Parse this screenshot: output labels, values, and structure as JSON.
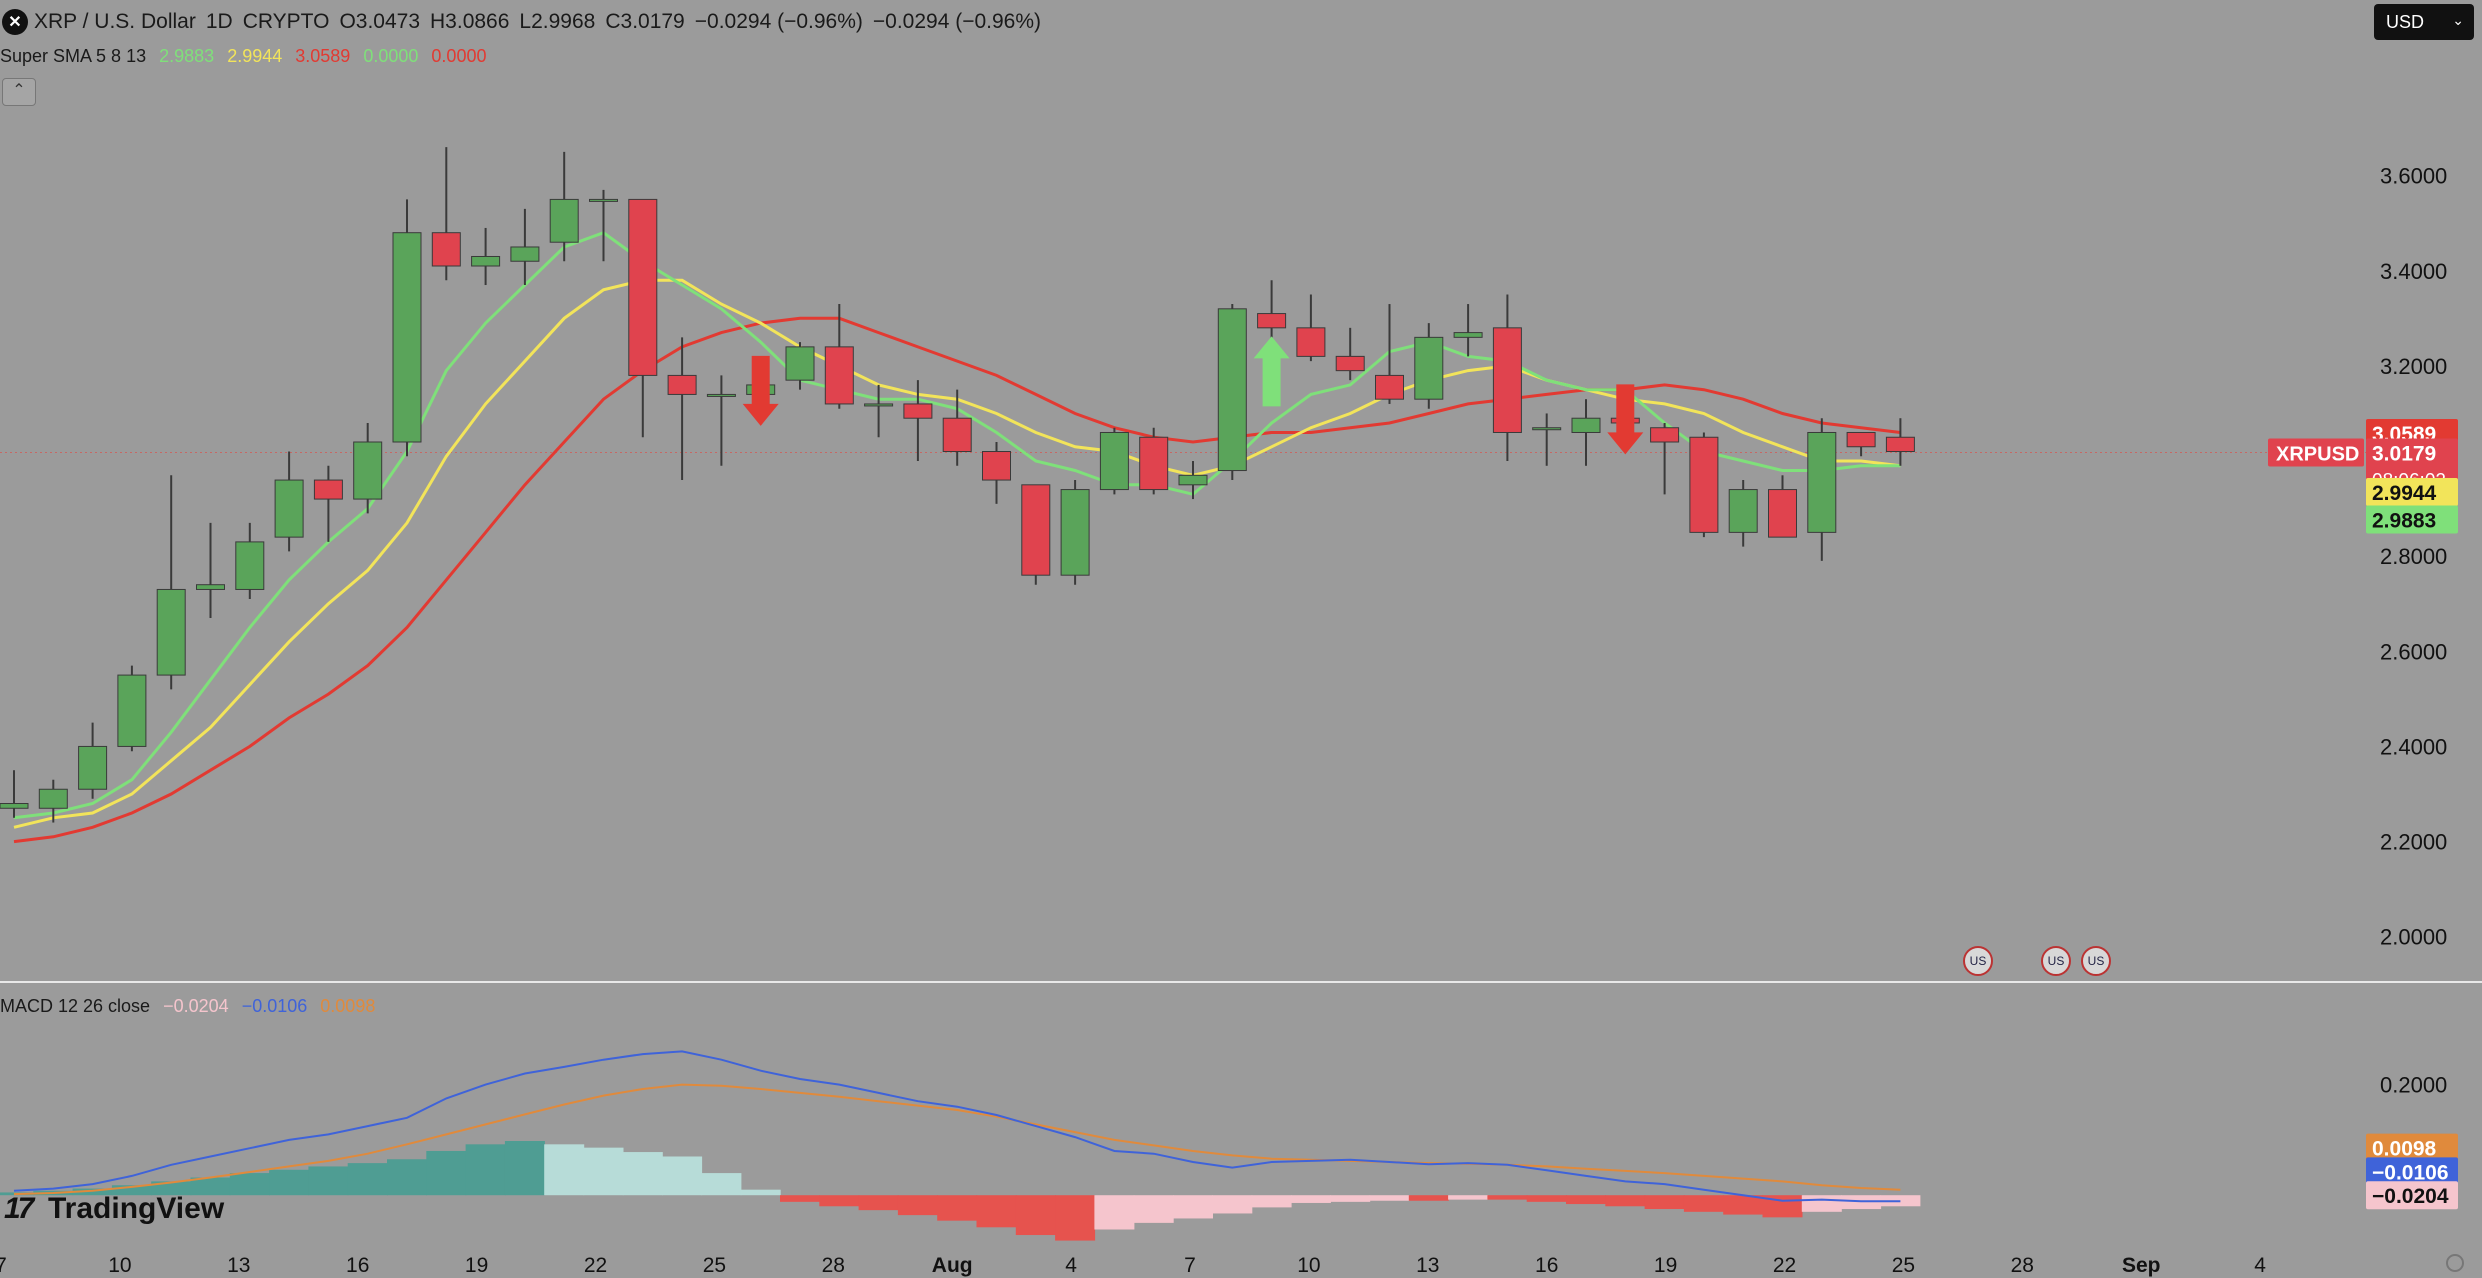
{
  "header": {
    "symbol": "XRP / U.S. Dollar",
    "interval": "1D",
    "exchange": "CRYPTO",
    "open": "O3.0473",
    "high": "H3.0866",
    "low": "L2.9968",
    "close": "C3.0179",
    "change": "−0.0294 (−0.96%)",
    "change2": "−0.0294 (−0.96%)",
    "currency": "USD"
  },
  "sma": {
    "title": "Super SMA 5 8 13",
    "v1": "2.9883",
    "v2": "2.9944",
    "v3": "3.0589",
    "v4": "0.0000",
    "v5": "0.0000"
  },
  "macd": {
    "title": "MACD 12 26 close",
    "hist": "−0.0204",
    "macd": "−0.0106",
    "signal": "0.0098"
  },
  "watermark": "TradingView",
  "colors": {
    "up": "#5aa45a",
    "down": "#e0434e",
    "sma5": "#7fe07a",
    "sma8": "#f2e45a",
    "sma13": "#e23a32",
    "macd": "#3f63d9",
    "signal": "#e08a3c",
    "bg": "#9b9b9b",
    "hist_up_strong": "#4f9d93",
    "hist_up_weak": "#b7dcd8",
    "hist_down_strong": "#e6534e",
    "hist_down_weak": "#f5c5cd"
  },
  "chart_data": [
    {
      "type": "candlestick",
      "title": "XRP / U.S. Dollar",
      "xlabel": "",
      "ylabel": "",
      "x_ticks": [
        "7",
        "10",
        "13",
        "16",
        "19",
        "22",
        "25",
        "28",
        "Aug",
        "4",
        "7",
        "10",
        "13",
        "16",
        "19",
        "22",
        "25",
        "28",
        "Sep",
        "4"
      ],
      "y_ticks": [
        "2.0000",
        "2.2000",
        "2.4000",
        "2.6000",
        "2.8000",
        "3.0000",
        "3.2000",
        "3.4000",
        "3.6000"
      ],
      "ylim": [
        1.93,
        3.78
      ],
      "price_labels": {
        "sma13": "3.0589",
        "last": "3.0179",
        "countdown": "08:06:02",
        "sma8": "2.9944",
        "sma5": "2.9883",
        "symbol": "XRPUSD"
      },
      "candles": [
        {
          "o": 2.27,
          "h": 2.35,
          "l": 2.25,
          "c": 2.28
        },
        {
          "o": 2.27,
          "h": 2.33,
          "l": 2.24,
          "c": 2.31
        },
        {
          "o": 2.31,
          "h": 2.45,
          "l": 2.29,
          "c": 2.4
        },
        {
          "o": 2.4,
          "h": 2.57,
          "l": 2.39,
          "c": 2.55
        },
        {
          "o": 2.55,
          "h": 2.97,
          "l": 2.52,
          "c": 2.73
        },
        {
          "o": 2.73,
          "h": 2.87,
          "l": 2.67,
          "c": 2.74
        },
        {
          "o": 2.73,
          "h": 2.87,
          "l": 2.71,
          "c": 2.83
        },
        {
          "o": 2.84,
          "h": 3.02,
          "l": 2.81,
          "c": 2.96
        },
        {
          "o": 2.96,
          "h": 2.99,
          "l": 2.83,
          "c": 2.92
        },
        {
          "o": 2.92,
          "h": 3.08,
          "l": 2.89,
          "c": 3.04
        },
        {
          "o": 3.04,
          "h": 3.55,
          "l": 3.01,
          "c": 3.48
        },
        {
          "o": 3.48,
          "h": 3.66,
          "l": 3.38,
          "c": 3.41
        },
        {
          "o": 3.41,
          "h": 3.49,
          "l": 3.37,
          "c": 3.43
        },
        {
          "o": 3.42,
          "h": 3.53,
          "l": 3.37,
          "c": 3.45
        },
        {
          "o": 3.46,
          "h": 3.65,
          "l": 3.42,
          "c": 3.55
        },
        {
          "o": 3.55,
          "h": 3.57,
          "l": 3.42,
          "c": 3.55
        },
        {
          "o": 3.55,
          "h": 3.55,
          "l": 3.05,
          "c": 3.18
        },
        {
          "o": 3.18,
          "h": 3.26,
          "l": 2.96,
          "c": 3.14
        },
        {
          "o": 3.14,
          "h": 3.18,
          "l": 2.99,
          "c": 3.14
        },
        {
          "o": 3.14,
          "h": 3.2,
          "l": 3.11,
          "c": 3.16
        },
        {
          "o": 3.17,
          "h": 3.25,
          "l": 3.15,
          "c": 3.24
        },
        {
          "o": 3.24,
          "h": 3.33,
          "l": 3.11,
          "c": 3.12
        },
        {
          "o": 3.12,
          "h": 3.16,
          "l": 3.05,
          "c": 3.12
        },
        {
          "o": 3.12,
          "h": 3.17,
          "l": 3.0,
          "c": 3.09
        },
        {
          "o": 3.09,
          "h": 3.15,
          "l": 2.99,
          "c": 3.02
        },
        {
          "o": 3.02,
          "h": 3.04,
          "l": 2.91,
          "c": 2.96
        },
        {
          "o": 2.95,
          "h": 2.95,
          "l": 2.74,
          "c": 2.76
        },
        {
          "o": 2.76,
          "h": 2.96,
          "l": 2.74,
          "c": 2.94
        },
        {
          "o": 2.94,
          "h": 3.07,
          "l": 2.93,
          "c": 3.06
        },
        {
          "o": 3.05,
          "h": 3.07,
          "l": 2.93,
          "c": 2.94
        },
        {
          "o": 2.95,
          "h": 3.0,
          "l": 2.92,
          "c": 2.97
        },
        {
          "o": 2.98,
          "h": 3.33,
          "l": 2.96,
          "c": 3.32
        },
        {
          "o": 3.31,
          "h": 3.38,
          "l": 3.22,
          "c": 3.28
        },
        {
          "o": 3.28,
          "h": 3.35,
          "l": 3.21,
          "c": 3.22
        },
        {
          "o": 3.22,
          "h": 3.28,
          "l": 3.17,
          "c": 3.19
        },
        {
          "o": 3.18,
          "h": 3.33,
          "l": 3.12,
          "c": 3.13
        },
        {
          "o": 3.13,
          "h": 3.29,
          "l": 3.11,
          "c": 3.26
        },
        {
          "o": 3.26,
          "h": 3.33,
          "l": 3.22,
          "c": 3.27
        },
        {
          "o": 3.28,
          "h": 3.35,
          "l": 3.0,
          "c": 3.06
        },
        {
          "o": 3.07,
          "h": 3.1,
          "l": 2.99,
          "c": 3.07
        },
        {
          "o": 3.06,
          "h": 3.13,
          "l": 2.99,
          "c": 3.09
        },
        {
          "o": 3.09,
          "h": 3.14,
          "l": 3.06,
          "c": 3.08
        },
        {
          "o": 3.07,
          "h": 3.08,
          "l": 2.93,
          "c": 3.04
        },
        {
          "o": 3.05,
          "h": 3.06,
          "l": 2.84,
          "c": 2.85
        },
        {
          "o": 2.85,
          "h": 2.96,
          "l": 2.82,
          "c": 2.94
        },
        {
          "o": 2.94,
          "h": 2.97,
          "l": 2.84,
          "c": 2.84
        },
        {
          "o": 2.85,
          "h": 3.09,
          "l": 2.79,
          "c": 3.06
        },
        {
          "o": 3.06,
          "h": 3.06,
          "l": 3.01,
          "c": 3.03
        },
        {
          "o": 3.05,
          "h": 3.09,
          "l": 2.99,
          "c": 3.02
        }
      ],
      "series": [
        {
          "values": [
            2.25,
            2.26,
            2.28,
            2.33,
            2.43,
            2.54,
            2.65,
            2.75,
            2.83,
            2.9,
            3.02,
            3.19,
            3.29,
            3.37,
            3.45,
            3.48,
            3.42,
            3.37,
            3.32,
            3.25,
            3.17,
            3.15,
            3.13,
            3.13,
            3.11,
            3.06,
            3.0,
            2.98,
            2.95,
            2.95,
            2.93,
            3.0,
            3.08,
            3.14,
            3.16,
            3.23,
            3.25,
            3.22,
            3.21,
            3.17,
            3.15,
            3.15,
            3.08,
            3.02,
            3.0,
            2.98,
            2.98,
            2.99,
            2.99
          ]
        },
        {
          "values": [
            2.23,
            2.25,
            2.26,
            2.3,
            2.37,
            2.44,
            2.53,
            2.62,
            2.7,
            2.77,
            2.87,
            3.01,
            3.12,
            3.21,
            3.3,
            3.36,
            3.38,
            3.38,
            3.33,
            3.29,
            3.24,
            3.2,
            3.16,
            3.14,
            3.13,
            3.1,
            3.06,
            3.03,
            3.02,
            2.99,
            2.97,
            2.99,
            3.03,
            3.07,
            3.1,
            3.14,
            3.17,
            3.19,
            3.2,
            3.17,
            3.15,
            3.13,
            3.12,
            3.1,
            3.06,
            3.03,
            3.0,
            3.0,
            2.99
          ]
        },
        {
          "values": [
            2.2,
            2.21,
            2.23,
            2.26,
            2.3,
            2.35,
            2.4,
            2.46,
            2.51,
            2.57,
            2.65,
            2.75,
            2.85,
            2.95,
            3.04,
            3.13,
            3.19,
            3.24,
            3.27,
            3.29,
            3.3,
            3.3,
            3.27,
            3.24,
            3.21,
            3.18,
            3.14,
            3.1,
            3.07,
            3.05,
            3.04,
            3.05,
            3.06,
            3.06,
            3.07,
            3.08,
            3.1,
            3.12,
            3.13,
            3.14,
            3.15,
            3.15,
            3.16,
            3.15,
            3.13,
            3.1,
            3.08,
            3.07,
            3.06
          ]
        }
      ],
      "signals": [
        {
          "i": 19,
          "dir": "down"
        },
        {
          "i": 32,
          "dir": "up"
        },
        {
          "i": 41,
          "dir": "down"
        }
      ]
    },
    {
      "type": "macd",
      "title": "MACD 12 26 close",
      "y_ticks": [
        "0.2000"
      ],
      "ylim": [
        -0.09,
        0.38
      ],
      "price_labels": {
        "signal": "0.0098",
        "macd": "−0.0106",
        "hist": "−0.0204"
      },
      "histogram": [
        0.005,
        0.008,
        0.012,
        0.018,
        0.025,
        0.032,
        0.04,
        0.046,
        0.052,
        0.058,
        0.065,
        0.08,
        0.092,
        0.098,
        0.092,
        0.086,
        0.078,
        0.07,
        0.04,
        0.01,
        -0.012,
        -0.02,
        -0.027,
        -0.036,
        -0.046,
        -0.058,
        -0.072,
        -0.082,
        -0.062,
        -0.05,
        -0.042,
        -0.033,
        -0.022,
        -0.014,
        -0.012,
        -0.01,
        -0.01,
        -0.008,
        -0.008,
        -0.012,
        -0.016,
        -0.02,
        -0.025,
        -0.03,
        -0.035,
        -0.04,
        -0.03,
        -0.025,
        -0.02
      ],
      "series": [
        {
          "values": [
            0.008,
            0.012,
            0.02,
            0.035,
            0.055,
            0.07,
            0.085,
            0.1,
            0.11,
            0.125,
            0.14,
            0.175,
            0.2,
            0.22,
            0.232,
            0.245,
            0.255,
            0.26,
            0.245,
            0.225,
            0.21,
            0.2,
            0.185,
            0.17,
            0.16,
            0.145,
            0.125,
            0.105,
            0.08,
            0.075,
            0.06,
            0.05,
            0.06,
            0.062,
            0.064,
            0.06,
            0.056,
            0.058,
            0.055,
            0.045,
            0.035,
            0.025,
            0.02,
            0.01,
            0.0,
            -0.01,
            -0.008,
            -0.011,
            -0.011
          ]
        },
        {
          "values": [
            0.002,
            0.004,
            0.008,
            0.015,
            0.023,
            0.032,
            0.042,
            0.052,
            0.062,
            0.075,
            0.092,
            0.11,
            0.128,
            0.146,
            0.164,
            0.18,
            0.192,
            0.2,
            0.198,
            0.192,
            0.185,
            0.178,
            0.17,
            0.162,
            0.154,
            0.142,
            0.128,
            0.114,
            0.1,
            0.09,
            0.08,
            0.072,
            0.066,
            0.064,
            0.062,
            0.06,
            0.058,
            0.057,
            0.055,
            0.052,
            0.048,
            0.044,
            0.04,
            0.035,
            0.03,
            0.025,
            0.018,
            0.013,
            0.01
          ]
        }
      ]
    }
  ]
}
